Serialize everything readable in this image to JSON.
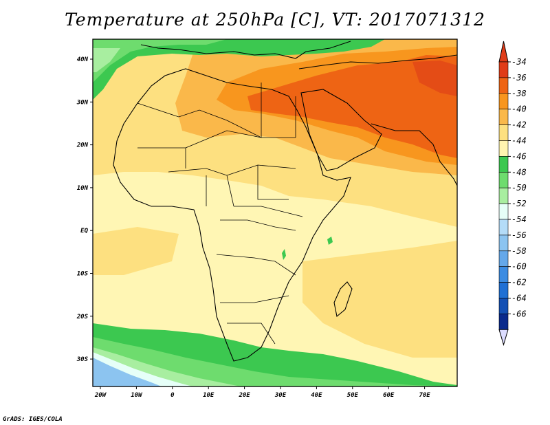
{
  "title": "Temperature at 250hPa [C], VT: 2017071312",
  "credit": "GrADS: IGES/COLA",
  "axes": {
    "x_ticks": [
      "20W",
      "10W",
      "0",
      "10E",
      "20E",
      "30E",
      "40E",
      "50E",
      "60E",
      "70E"
    ],
    "y_ticks": [
      "40N",
      "30N",
      "20N",
      "10N",
      "EQ",
      "10S",
      "20S",
      "30S"
    ]
  },
  "colorbar": {
    "labels": [
      "-34",
      "-36",
      "-38",
      "-40",
      "-42",
      "-44",
      "-46",
      "-48",
      "-50",
      "-52",
      "-54",
      "-56",
      "-58",
      "-60",
      "-62",
      "-64",
      "-66"
    ],
    "colors": [
      "#e03c18",
      "#ee6414",
      "#f8961e",
      "#fab84a",
      "#fde080",
      "#fff4b0",
      "#3cc850",
      "#6edc6e",
      "#a8eea0",
      "#e6fff8",
      "#b4dcf8",
      "#8cc4f0",
      "#64a8ea",
      "#3c8ce2",
      "#2070d4",
      "#1450b4",
      "#0a2a8c"
    ],
    "top_arrow_color": "#e03c18",
    "bottom_arrow_color": "#dcdcff"
  },
  "colors": {
    "pale_yellow": "#fff6b4",
    "light_orange": "#fde080",
    "orange": "#fab84a",
    "dark_orange": "#f8961e",
    "red_orange": "#ee6414",
    "green": "#3cc850",
    "light_green": "#6edc6e",
    "pale_green": "#a8eea0",
    "blue": "#8cc4f0"
  }
}
